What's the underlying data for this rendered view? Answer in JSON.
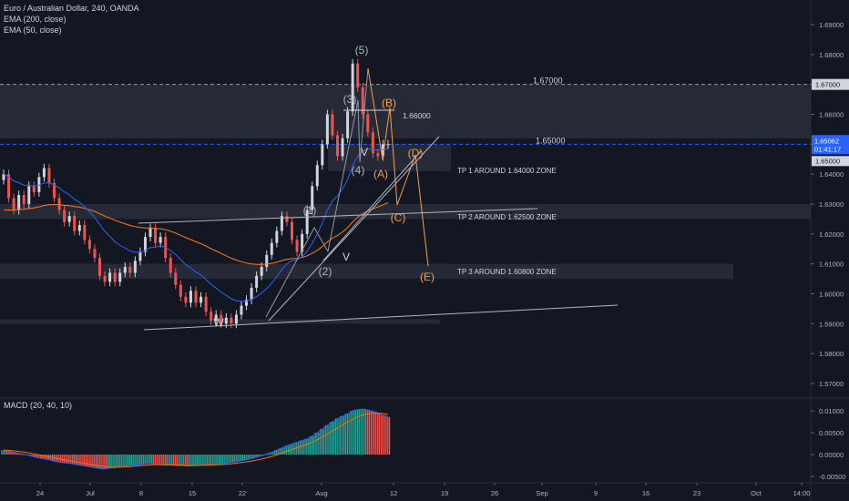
{
  "header": {
    "symbol_title": "Euro / Australian Dollar, 240, OANDA",
    "indicators": [
      "EMA (200, close)",
      "EMA (50, close)"
    ]
  },
  "colors": {
    "background": "#131722",
    "grid": "#1e222d",
    "up_candle": "#d1d4dc",
    "down_candle": "#ef5350",
    "ema50": "#2962ff",
    "ema200": "#ff7a1a",
    "wave_white": "#b2b5be",
    "wave_orange": "#f0a050",
    "zone": "#2a2e39",
    "price_line": "#2962ff"
  },
  "chart_data": [
    {
      "type": "candlestick",
      "title": "",
      "y_axis": {
        "min": 1.565,
        "max": 1.695,
        "ticks": [
          "1.69000",
          "1.68000",
          "1.67000",
          "1.66000",
          "1.65000",
          "1.64000",
          "1.63000",
          "1.62000",
          "1.61000",
          "1.60000",
          "1.59000",
          "1.58000",
          "1.57000"
        ]
      },
      "x_axis": {
        "ticks": [
          "24",
          "Jul",
          "8",
          "15",
          "22",
          "Aug",
          "12",
          "19",
          "26",
          "Sep",
          "9",
          "16",
          "23",
          "Oct",
          "14:00"
        ]
      },
      "price_labels": [
        {
          "value": 1.67,
          "text": "1.67000"
        },
        {
          "value": 1.65062,
          "text": "1.65062",
          "subtext": "01:41:17"
        },
        {
          "value": 1.65,
          "text": "1.65000"
        }
      ],
      "horizontal_levels": [
        {
          "value": 1.67,
          "text": "1.67000"
        },
        {
          "value": 1.65,
          "text": "1.65000"
        }
      ],
      "zones": [
        {
          "from": 1.652,
          "to": 1.67
        },
        {
          "from": 1.641,
          "to": 1.65
        },
        {
          "from": 1.625,
          "to": 1.63
        },
        {
          "from": 1.605,
          "to": 1.61
        },
        {
          "from": 1.59,
          "to": 1.5915
        }
      ],
      "annotations": {
        "white_labels": [
          "(1)",
          "(2)",
          "(3)",
          "(4)",
          "(5)",
          "W",
          "V",
          "V"
        ],
        "orange_labels": [
          "(A)",
          "(B)",
          "(C)",
          "(D)",
          "(E)"
        ],
        "level_text": "1.66000",
        "targets": [
          "TP 1 AROUND 1.64000 ZONE",
          "TP 2 AROUND 1.62500 ZONE",
          "TP 3 AROUND 1.60800 ZONE"
        ]
      },
      "candles_close": [
        1.64,
        1.632,
        1.628,
        1.633,
        1.63,
        1.636,
        1.634,
        1.639,
        1.642,
        1.637,
        1.632,
        1.628,
        1.624,
        1.626,
        1.621,
        1.623,
        1.618,
        1.615,
        1.612,
        1.606,
        1.604,
        1.607,
        1.604,
        1.607,
        1.609,
        1.607,
        1.611,
        1.614,
        1.619,
        1.622,
        1.617,
        1.619,
        1.612,
        1.607,
        1.603,
        1.599,
        1.597,
        1.601,
        1.597,
        1.599,
        1.594,
        1.591,
        1.593,
        1.59,
        1.592,
        1.59,
        1.593,
        1.596,
        1.598,
        1.602,
        1.606,
        1.609,
        1.613,
        1.617,
        1.621,
        1.626,
        1.624,
        1.618,
        1.614,
        1.62,
        1.628,
        1.636,
        1.643,
        1.65,
        1.66,
        1.653,
        1.646,
        1.652,
        1.661,
        1.677,
        1.669,
        1.66,
        1.654,
        1.647,
        1.646,
        1.65,
        1.65
      ]
    },
    {
      "type": "bar",
      "title": "MACD (20, 40, 10)",
      "y_axis": {
        "min": -0.0065,
        "max": 0.0125,
        "ticks": [
          "0.01000",
          "0.00500",
          "0.00000",
          "-0.00500"
        ]
      },
      "histogram": [
        0.001,
        0.0008,
        0.0005,
        0.0003,
        0.0001,
        -0.0002,
        -0.0005,
        -0.0008,
        -0.001,
        -0.0012,
        -0.0015,
        -0.0017,
        -0.0019,
        -0.002,
        -0.0022,
        -0.0024,
        -0.0026,
        -0.0028,
        -0.003,
        -0.0032,
        -0.0033,
        -0.0031,
        -0.003,
        -0.0028,
        -0.0027,
        -0.0025,
        -0.0024,
        -0.0023,
        -0.0021,
        -0.002,
        -0.0022,
        -0.0023,
        -0.0024,
        -0.0024,
        -0.0025,
        -0.0025,
        -0.0026,
        -0.0026,
        -0.0025,
        -0.0024,
        -0.0024,
        -0.0023,
        -0.0022,
        -0.0021,
        -0.002,
        -0.0018,
        -0.0016,
        -0.0014,
        -0.0012,
        -0.0009,
        -0.0006,
        -0.0003,
        0.0001,
        0.0005,
        0.001,
        0.0015,
        0.002,
        0.0024,
        0.0028,
        0.0032,
        0.0036,
        0.0042,
        0.005,
        0.0058,
        0.0067,
        0.0075,
        0.0082,
        0.0088,
        0.0093,
        0.01,
        0.0103,
        0.0104,
        0.0102,
        0.0099,
        0.0095,
        0.009,
        0.0086
      ]
    }
  ]
}
